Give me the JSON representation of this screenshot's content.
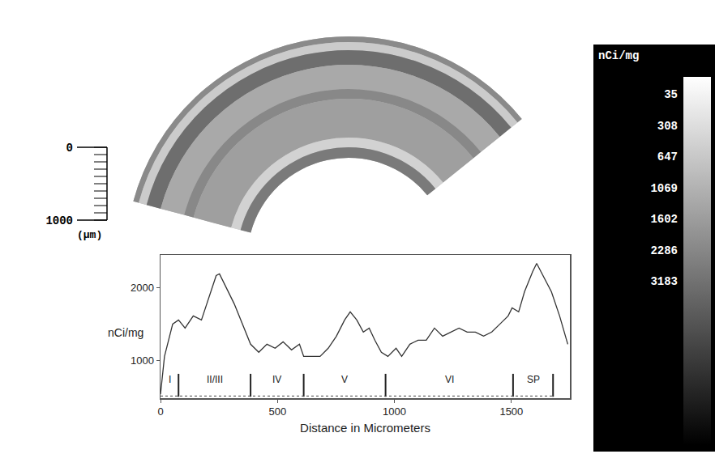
{
  "chart_data": {
    "type": "line",
    "x_label": "Distance in Micrometers",
    "y_label": "nCi/mg",
    "x": [
      0,
      17,
      52,
      77,
      105,
      140,
      175,
      210,
      238,
      252,
      280,
      315,
      350,
      385,
      420,
      455,
      490,
      524,
      560,
      594,
      612,
      647,
      682,
      717,
      752,
      787,
      811,
      839,
      867,
      892,
      916,
      944,
      972,
      1007,
      1031,
      1066,
      1101,
      1136,
      1171,
      1206,
      1241,
      1276,
      1311,
      1346,
      1381,
      1416,
      1451,
      1486,
      1503,
      1531,
      1556,
      1591,
      1608,
      1636,
      1671,
      1706,
      1741
    ],
    "values": [
      533,
      1055,
      1500,
      1555,
      1444,
      1611,
      1555,
      1889,
      2167,
      2189,
      2000,
      1778,
      1500,
      1222,
      1111,
      1222,
      1167,
      1255,
      1144,
      1222,
      1055,
      1055,
      1055,
      1167,
      1333,
      1555,
      1667,
      1555,
      1389,
      1444,
      1278,
      1111,
      1055,
      1167,
      1055,
      1222,
      1278,
      1278,
      1444,
      1333,
      1389,
      1444,
      1389,
      1389,
      1333,
      1389,
      1500,
      1611,
      1722,
      1667,
      1944,
      2222,
      2333,
      2167,
      1944,
      1611,
      1222
    ],
    "color": "#333333",
    "xlim": [
      0,
      1750
    ],
    "xticks": [
      0,
      500,
      1000,
      1500
    ],
    "ylim": [
      480,
      2450
    ],
    "yticks": [
      1000,
      2000
    ],
    "grid": false,
    "layer_boundaries": [
      77,
      385,
      612,
      962,
      1507,
      1678
    ],
    "layer_labels": [
      "I",
      "II/III",
      "IV",
      "V",
      "VI",
      "SP"
    ]
  },
  "autoradiograph": {
    "scale_bar": {
      "range": [
        0,
        1000
      ],
      "ticks": [
        0,
        1000
      ],
      "minor_step": 100,
      "unit": "(μm)"
    }
  },
  "color_bar": {
    "title": "nCi/mg",
    "labels": [
      35,
      308,
      647,
      1069,
      1602,
      2286,
      3183
    ]
  }
}
